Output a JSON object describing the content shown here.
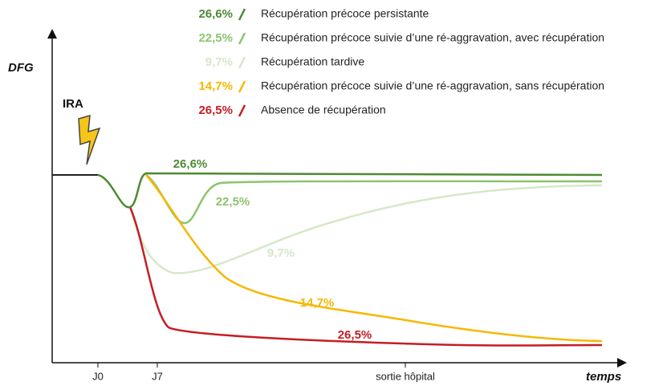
{
  "axis": {
    "y_label": "DFG",
    "x_label": "temps",
    "x_ticks": [
      "J0",
      "J7",
      "sortie hôpital"
    ]
  },
  "event": "IRA",
  "legend": [
    {
      "percent": "26,6%",
      "label": "Récupération précoce persistante",
      "color": "#4e8a33"
    },
    {
      "percent": "22,5%",
      "label": "Récupération précoce suivie d’une ré-aggravation, avec récupération",
      "color": "#8cc46e"
    },
    {
      "percent": "9,7%",
      "label": "Récupération tardive",
      "color": "#d6e8c8"
    },
    {
      "percent": "14,7%",
      "label": "Récupération précoce suivie d’une ré-aggravation, sans récupération",
      "color": "#f5b800"
    },
    {
      "percent": "26,5%",
      "label": "Absence de récupération",
      "color": "#c41e24"
    }
  ],
  "curve_labels": [
    "26,6%",
    "22,5%",
    "9,7%",
    "14,7%",
    "26,5%"
  ]
}
